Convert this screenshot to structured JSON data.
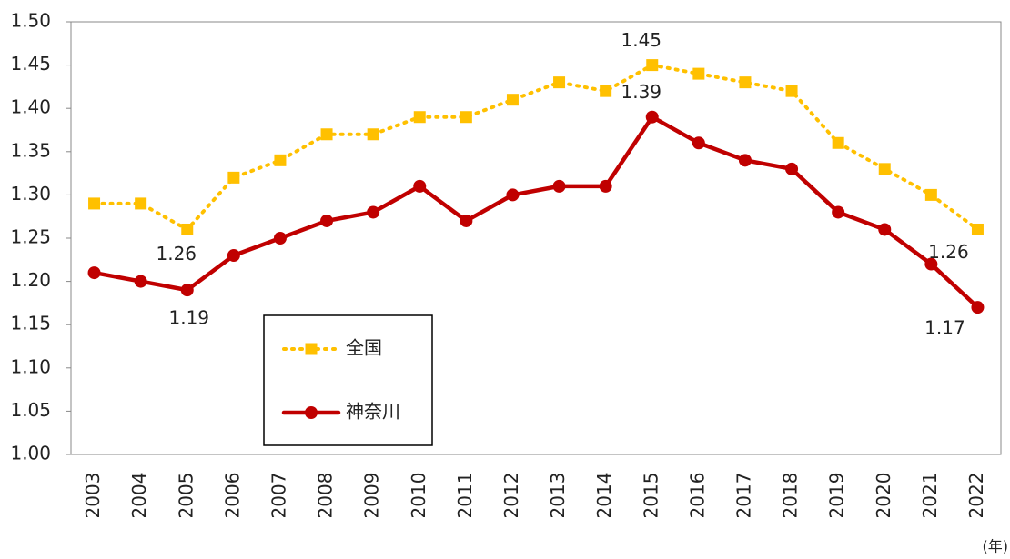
{
  "chart_data": {
    "type": "line",
    "categories": [
      "2003",
      "2004",
      "2005",
      "2006",
      "2007",
      "2008",
      "2009",
      "2010",
      "2011",
      "2012",
      "2013",
      "2014",
      "2015",
      "2016",
      "2017",
      "2018",
      "2019",
      "2020",
      "2021",
      "2022"
    ],
    "x_label": "(年)",
    "series": [
      {
        "name": "全国",
        "color": "#ffc000",
        "values": [
          1.29,
          1.29,
          1.26,
          1.32,
          1.34,
          1.37,
          1.37,
          1.39,
          1.39,
          1.41,
          1.43,
          1.42,
          1.45,
          1.44,
          1.43,
          1.42,
          1.36,
          1.33,
          1.3,
          1.26
        ]
      },
      {
        "name": "神奈川",
        "color": "#c00000",
        "values": [
          1.21,
          1.2,
          1.19,
          1.23,
          1.25,
          1.27,
          1.28,
          1.31,
          1.27,
          1.3,
          1.31,
          1.31,
          1.39,
          1.36,
          1.34,
          1.33,
          1.28,
          1.26,
          1.22,
          1.17
        ]
      }
    ],
    "ylim": [
      1.0,
      1.5
    ],
    "yticks": [
      {
        "value": 1.0,
        "label": "1.00"
      },
      1.05,
      {
        "value": 1.1,
        "label": "1.10"
      },
      1.15,
      {
        "value": 1.2,
        "label": "1.20"
      },
      1.25,
      {
        "value": 1.3,
        "label": "1.30"
      },
      1.35,
      {
        "value": 1.4,
        "label": "1.40"
      },
      1.45,
      {
        "value": 1.5,
        "label": "1.50"
      }
    ],
    "grid": false
  }
}
